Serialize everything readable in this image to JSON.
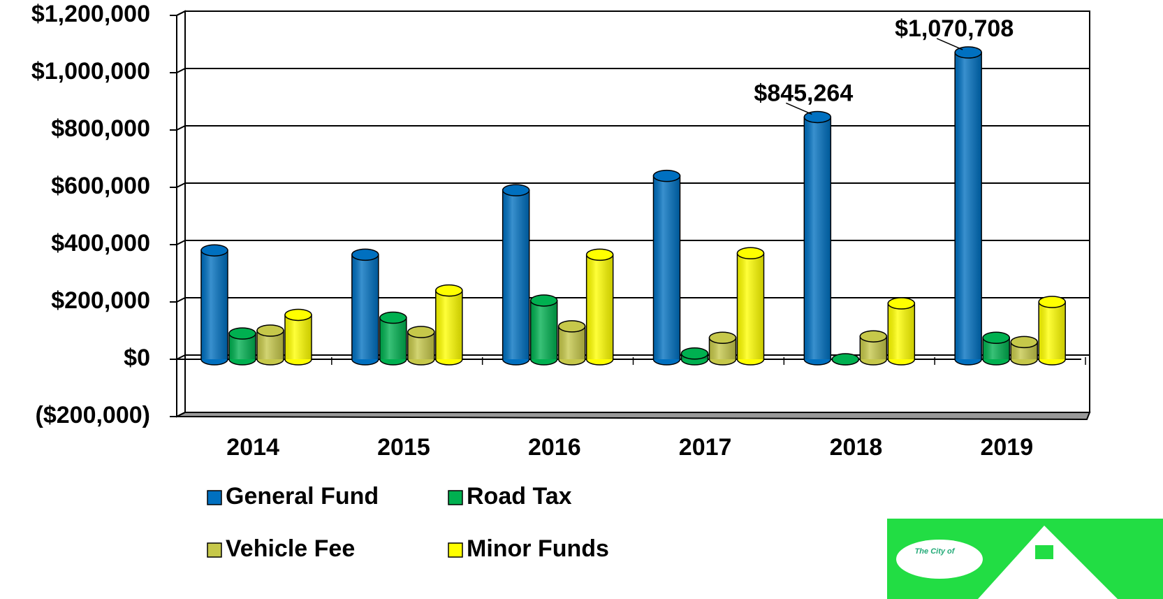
{
  "chart_data": {
    "type": "bar3d",
    "categories": [
      "2014",
      "2015",
      "2016",
      "2017",
      "2018",
      "2019"
    ],
    "series": [
      {
        "name": "General Fund",
        "color": "#0070c0",
        "values": [
          380000,
          365000,
          590000,
          640000,
          845264,
          1070708
        ],
        "value_labels": [
          null,
          null,
          null,
          null,
          "$845,264",
          "$1,070,708"
        ]
      },
      {
        "name": "Road Tax",
        "color": "#00b050",
        "values": [
          90000,
          145000,
          205000,
          20000,
          0,
          75000
        ]
      },
      {
        "name": "Vehicle Fee",
        "color": "#c6c84a",
        "values": [
          100000,
          95000,
          115000,
          75000,
          80000,
          60000
        ]
      },
      {
        "name": "Minor Funds",
        "color": "#ffff00",
        "values": [
          155000,
          240000,
          365000,
          370000,
          195000,
          200000
        ]
      }
    ],
    "ylim": [
      -200000,
      1200000
    ],
    "yticks": [
      {
        "value": -200000,
        "label": "($200,000)"
      },
      {
        "value": 0,
        "label": "$0"
      },
      {
        "value": 200000,
        "label": "$200,000"
      },
      {
        "value": 400000,
        "label": "$400,000"
      },
      {
        "value": 600000,
        "label": "$600,000"
      },
      {
        "value": 800000,
        "label": "$800,000"
      },
      {
        "value": 1000000,
        "label": "$1,000,000"
      },
      {
        "value": 1200000,
        "label": "$1,200,000"
      }
    ],
    "grid": true
  },
  "logo": {
    "text": "The City of"
  }
}
